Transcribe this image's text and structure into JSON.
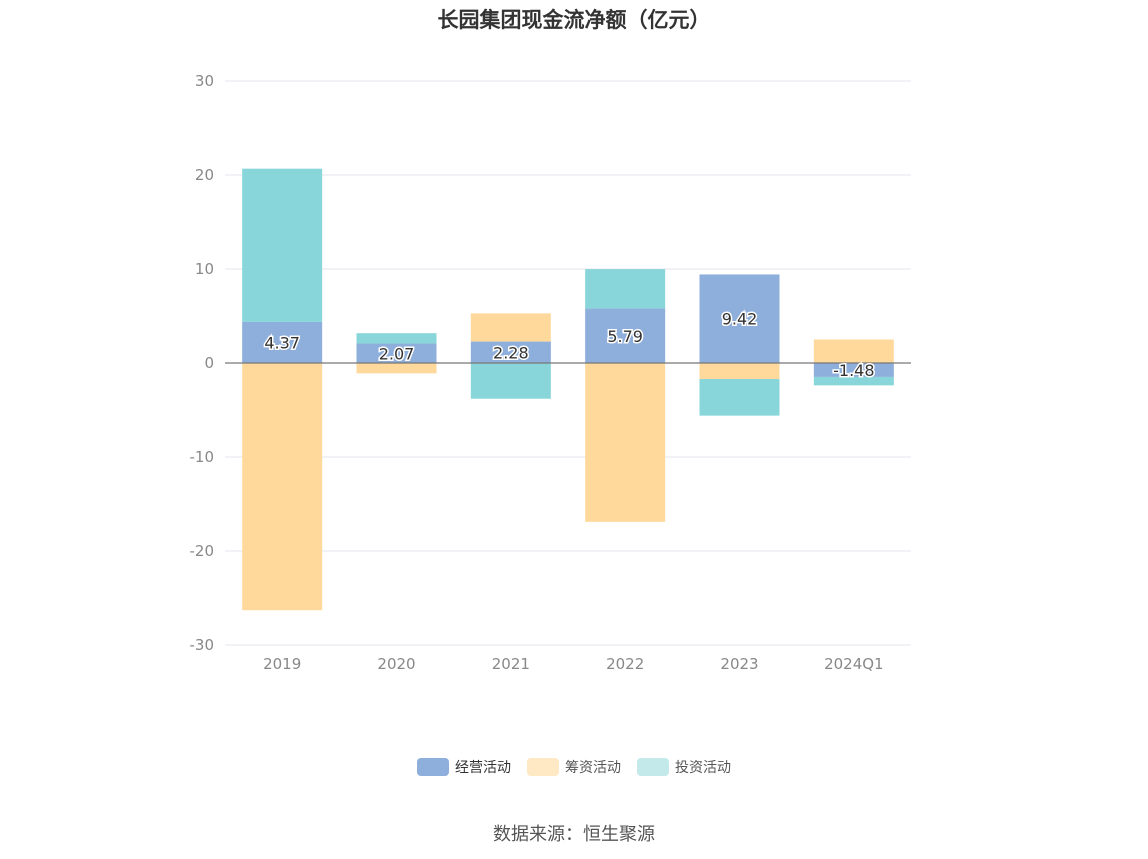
{
  "chart_data": {
    "type": "bar",
    "stacked": true,
    "title": "长园集团现金流净额（亿元）",
    "categories": [
      "2019",
      "2020",
      "2021",
      "2022",
      "2023",
      "2024Q1"
    ],
    "ylim": [
      -30,
      30
    ],
    "yticks": [
      30,
      20,
      10,
      0,
      -10,
      -20,
      -30
    ],
    "grid": true,
    "legend_position": "bottom",
    "series": [
      {
        "name": "经营活动",
        "color": "#8eaedb",
        "values": [
          4.37,
          2.07,
          2.28,
          5.79,
          9.42,
          -1.48
        ]
      },
      {
        "name": "筹资活动",
        "color": "#ffd99b",
        "values": [
          -26.3,
          -1.1,
          3.0,
          -16.9,
          -1.7,
          2.5
        ]
      },
      {
        "name": "投资活动",
        "color": "#88d6d9",
        "values": [
          16.3,
          1.1,
          -3.8,
          4.2,
          -3.9,
          -0.9
        ]
      }
    ],
    "data_labels": [
      "4.37",
      "2.07",
      "2.28",
      "5.79",
      "9.42",
      "-1.48"
    ]
  },
  "legend_colors": {
    "经营活动": "#8eaedb",
    "筹资活动": "#ffe8c4",
    "投资活动": "#c3e9eb"
  },
  "source": "数据来源：恒生聚源"
}
